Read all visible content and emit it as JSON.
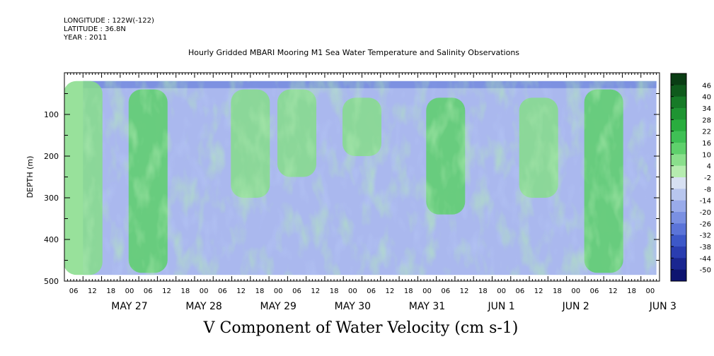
{
  "header": {
    "longitude": "LONGITUDE : 122W(-122)",
    "latitude": "LATITUDE : 36.8N",
    "year": "YEAR : 2011"
  },
  "title": "Hourly Gridded MBARI Mooring M1 Sea Water Temperature and Salinity Observations",
  "variable_title": "V Component of Water Velocity (cm s-1)",
  "chart_data": {
    "type": "heatmap",
    "title": "Hourly Gridded MBARI Mooring M1 Sea Water Temperature and Salinity Observations",
    "xlabel": "",
    "ylabel": "DEPTH (m)",
    "ylim": [
      500,
      0
    ],
    "y_inverted": true,
    "yticks": [
      100,
      200,
      300,
      400,
      500
    ],
    "xlim": [
      "2011-05-26T03:00",
      "2011-06-03T03:00"
    ],
    "x_hour_ticks": [
      "06",
      "12",
      "18",
      "00",
      "06",
      "12",
      "18",
      "00",
      "06",
      "12",
      "18",
      "00",
      "06",
      "12",
      "18",
      "00",
      "06",
      "12",
      "18",
      "00",
      "06",
      "12",
      "18",
      "00",
      "06",
      "12",
      "18",
      "00",
      "06",
      "12",
      "18",
      "00"
    ],
    "x_day_labels": [
      "MAY 27",
      "MAY 28",
      "MAY 29",
      "MAY 30",
      "MAY 31",
      "JUN  1",
      "JUN  2",
      "JUN  3"
    ],
    "colorbar": {
      "labels": [
        46,
        40,
        34,
        28,
        22,
        16,
        10,
        4,
        -2,
        -8,
        -14,
        -20,
        -26,
        -32,
        -38,
        -44,
        -50
      ],
      "colors": [
        "#0a3d14",
        "#0f5a1c",
        "#167a27",
        "#1e9432",
        "#29ad3e",
        "#3fc055",
        "#5fd06c",
        "#8adf8c",
        "#b6ecb0",
        "#d7e0f2",
        "#b8c6ee",
        "#99abea",
        "#7a90e2",
        "#5b74d8",
        "#3d58c8",
        "#2a3db0",
        "#1a2690",
        "#0d1470"
      ]
    },
    "data_start_time": "2011-05-26T09:00",
    "data_end_time": "2011-06-03T02:00",
    "data_depth_range": [
      20,
      485
    ],
    "description_of_field": [
      {
        "time": "2011-05-26T09:00",
        "depth_range": [
          20,
          485
        ],
        "v_cm_s": -8
      },
      {
        "time": "2011-05-27T06:00",
        "depth_range": [
          40,
          480
        ],
        "v_cm_s": 14
      },
      {
        "time": "2011-05-28T15:00",
        "depth_range": [
          40,
          300
        ],
        "v_cm_s": 12
      },
      {
        "time": "2011-05-29T06:00",
        "depth_range": [
          40,
          250
        ],
        "v_cm_s": 10
      },
      {
        "time": "2011-05-30T03:00",
        "depth_range": [
          60,
          200
        ],
        "v_cm_s": 8
      },
      {
        "time": "2011-05-31T06:00",
        "depth_range": [
          60,
          340
        ],
        "v_cm_s": 16
      },
      {
        "time": "2011-06-01T12:00",
        "depth_range": [
          60,
          300
        ],
        "v_cm_s": 10
      },
      {
        "time": "2011-06-02T09:00",
        "depth_range": [
          40,
          480
        ],
        "v_cm_s": 14
      }
    ]
  }
}
